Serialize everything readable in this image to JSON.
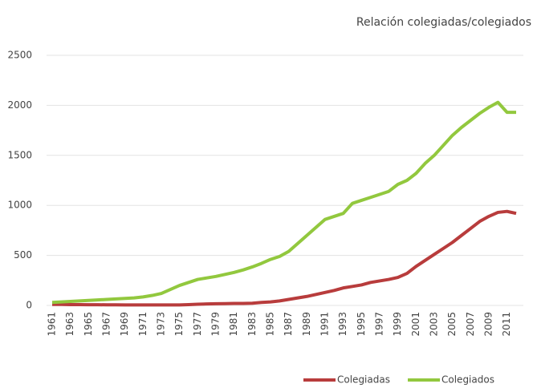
{
  "chart_data": {
    "type": "line",
    "title": "Relación colegiadas/colegiados",
    "categories": [
      "1961",
      null,
      "1963",
      null,
      "1965",
      null,
      "1967",
      null,
      "1969",
      null,
      "1971",
      null,
      "1973",
      null,
      "1975",
      null,
      "1977",
      null,
      "1979",
      null,
      "1981",
      null,
      "1983",
      null,
      "1985",
      null,
      "1987",
      null,
      "1989",
      null,
      "1991",
      null,
      "1993",
      null,
      "1995",
      null,
      "1997",
      null,
      "1999",
      null,
      "2001",
      null,
      "2003",
      null,
      "2005",
      null,
      "2007",
      null,
      "2009",
      null,
      "2011",
      null
    ],
    "series": [
      {
        "name": "Colegiadas",
        "color": "#b83c3c",
        "values": [
          10,
          10,
          8,
          8,
          7,
          7,
          6,
          6,
          5,
          5,
          5,
          5,
          5,
          5,
          5,
          8,
          12,
          15,
          17,
          18,
          20,
          20,
          22,
          30,
          35,
          45,
          60,
          75,
          90,
          110,
          130,
          150,
          175,
          190,
          205,
          230,
          245,
          260,
          280,
          320,
          390,
          450,
          510,
          570,
          630,
          700,
          770,
          840,
          890,
          930,
          940,
          920
        ]
      },
      {
        "name": "Colegiados",
        "color": "#92c83e",
        "values": [
          30,
          35,
          40,
          45,
          50,
          55,
          60,
          65,
          70,
          75,
          85,
          100,
          120,
          160,
          200,
          230,
          260,
          275,
          290,
          310,
          330,
          355,
          385,
          420,
          460,
          490,
          540,
          620,
          700,
          780,
          860,
          890,
          920,
          1020,
          1050,
          1080,
          1110,
          1140,
          1210,
          1250,
          1320,
          1420,
          1500,
          1600,
          1700,
          1780,
          1850,
          1920,
          1980,
          2030,
          1930,
          1930
        ]
      }
    ],
    "ylim": [
      0,
      2500
    ],
    "yticks": [
      0,
      500,
      1000,
      1500,
      2000,
      2500
    ],
    "grid": true,
    "legend": "bottom"
  }
}
